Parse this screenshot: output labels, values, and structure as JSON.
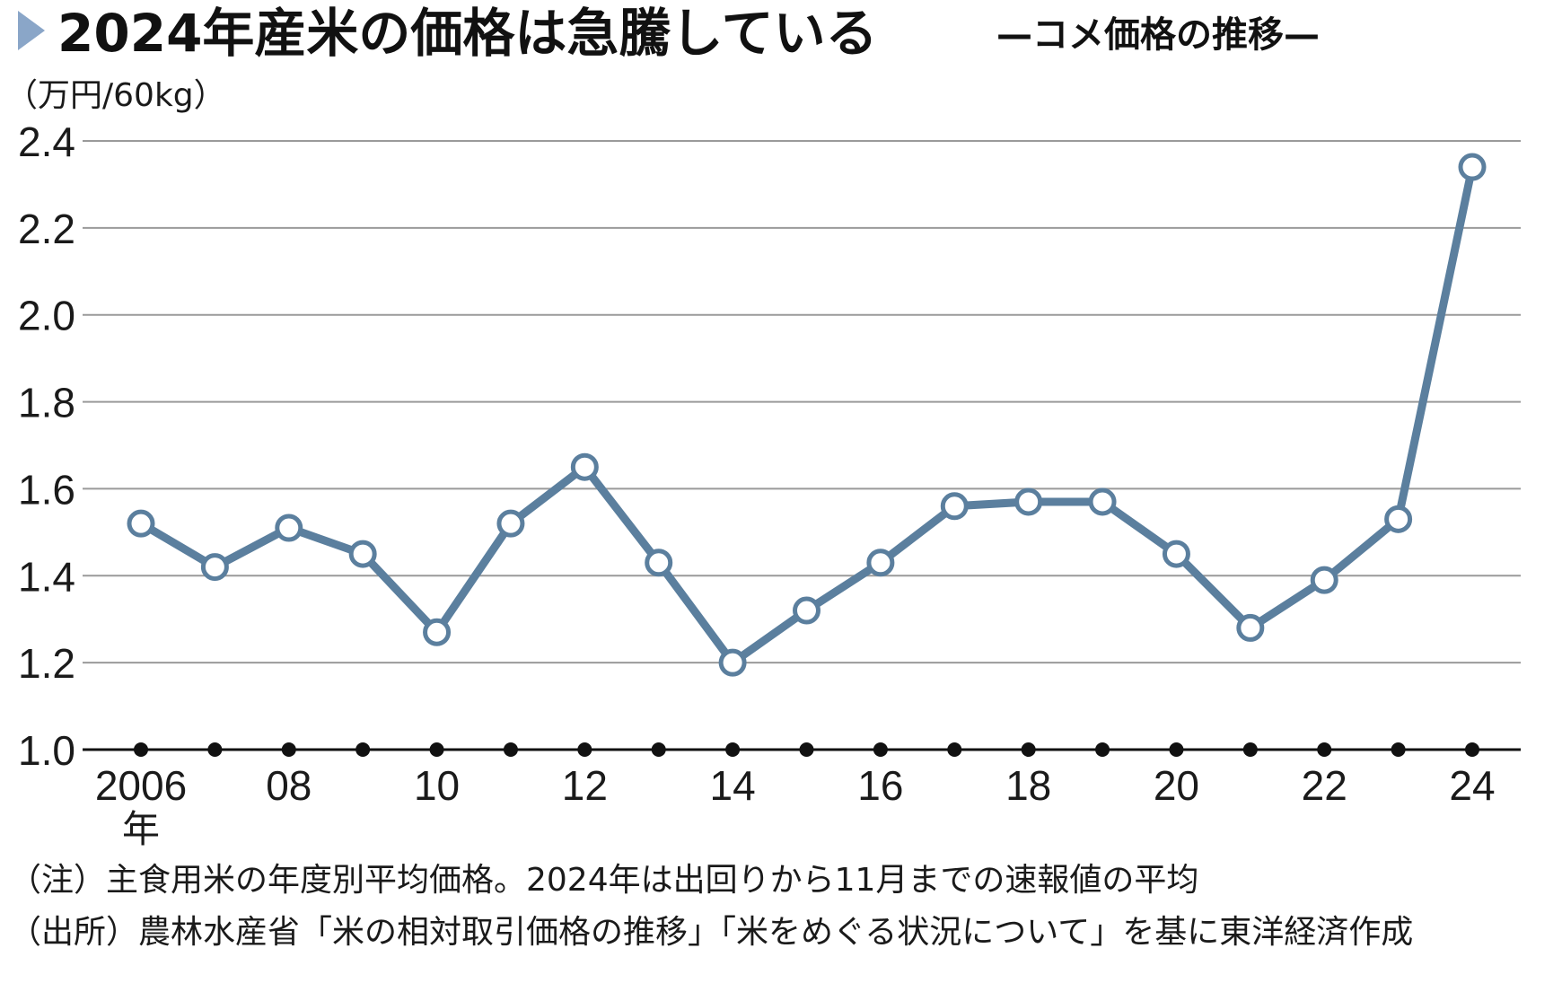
{
  "header": {
    "title": "2024年産米の価格は急騰している",
    "subtitle": "—コメ価格の推移—"
  },
  "axis": {
    "unit_label": "（万円/60kg）",
    "year_suffix": "年"
  },
  "notes": {
    "note": "（注）主食用米の年度別平均価格。2024年は出回りから11月までの速報値の平均",
    "source": "（出所）農林水産省「米の相対取引価格の推移」「米をめぐる状況について」を基に東洋経済作成"
  },
  "colors": {
    "line": "#5b7f9e",
    "marker_fill": "#ffffff",
    "grid": "#9a9a9a",
    "axis": "#111111",
    "title_arrow": "#8aa6c8"
  },
  "chart_data": {
    "type": "line",
    "title": "2024年産米の価格は急騰している",
    "subtitle": "—コメ価格の推移—",
    "ylabel": "（万円/60kg）",
    "xlabel": "",
    "x": [
      2006,
      2007,
      2008,
      2009,
      2010,
      2011,
      2012,
      2013,
      2014,
      2015,
      2016,
      2017,
      2018,
      2019,
      2020,
      2021,
      2022,
      2023,
      2024
    ],
    "x_tick_labels": [
      {
        "year": 2006,
        "label": "2006"
      },
      {
        "year": 2008,
        "label": "08"
      },
      {
        "year": 2010,
        "label": "10"
      },
      {
        "year": 2012,
        "label": "12"
      },
      {
        "year": 2014,
        "label": "14"
      },
      {
        "year": 2016,
        "label": "16"
      },
      {
        "year": 2018,
        "label": "18"
      },
      {
        "year": 2020,
        "label": "20"
      },
      {
        "year": 2022,
        "label": "22"
      },
      {
        "year": 2024,
        "label": "24"
      }
    ],
    "y_tick_labels": [
      "1.0",
      "1.2",
      "1.4",
      "1.6",
      "1.8",
      "2.0",
      "2.2",
      "2.4"
    ],
    "ylim": [
      1.0,
      2.4
    ],
    "grid": true,
    "series": [
      {
        "values": [
          1.52,
          1.42,
          1.51,
          1.45,
          1.27,
          1.52,
          1.65,
          1.43,
          1.2,
          1.32,
          1.43,
          1.56,
          1.57,
          1.57,
          1.45,
          1.28,
          1.39,
          1.53,
          2.34
        ]
      }
    ]
  }
}
